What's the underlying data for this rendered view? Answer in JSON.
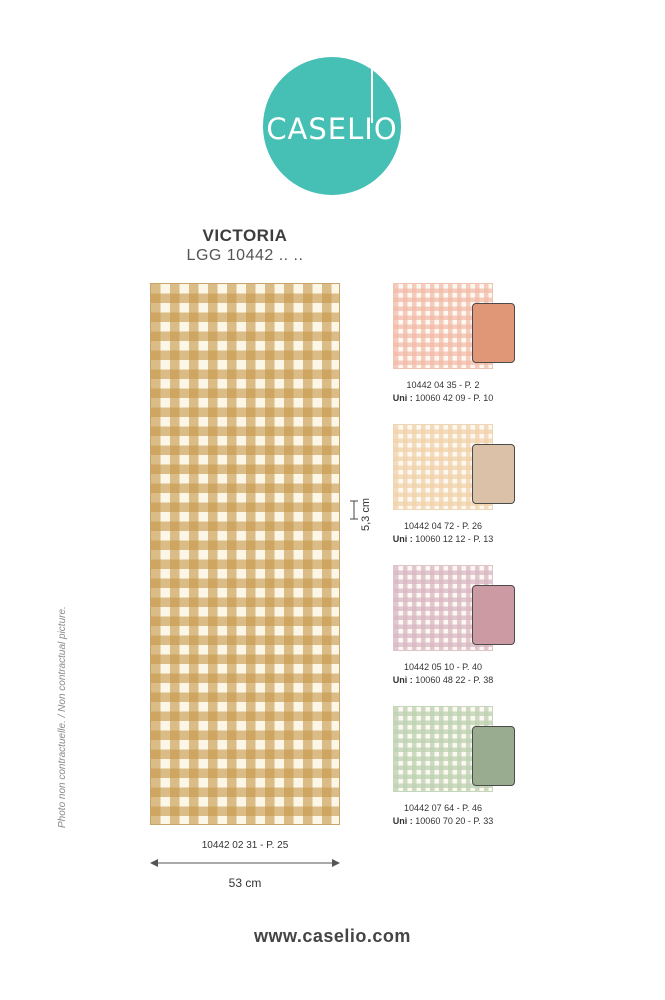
{
  "brand": {
    "logo_text": "CASELIO",
    "color": "#46bfb5"
  },
  "collection": {
    "name": "VICTORIA",
    "code": "LGG 10442 .. .."
  },
  "main": {
    "ref": "10442 02 31 - P. 25",
    "width_label": "53 cm",
    "repeat_label": "5,3 cm",
    "color": "#c6984c"
  },
  "disclaimer": "Photo non contractuelle. / Non contractual picture.",
  "variants": [
    {
      "ref": "10442 04 35 - P. 2",
      "uni_label": "Uni :",
      "uni_ref": " 10060 42 09 - P. 10",
      "check_color": "#f2b9a6",
      "uni_color": "#df9778"
    },
    {
      "ref": "10442 04 72 - P. 26",
      "uni_label": "Uni :",
      "uni_ref": " 10060 12 12 - P. 13",
      "check_color": "#f1d2a9",
      "uni_color": "#dac1a8"
    },
    {
      "ref": "10442 05 10 - P. 40",
      "uni_label": "Uni :",
      "uni_ref": " 10060 48 22 - P. 38",
      "check_color": "#d9b7c3",
      "uni_color": "#cc9aa3"
    },
    {
      "ref": "10442 07 64 - P. 46",
      "uni_label": "Uni :",
      "uni_ref": " 10060 70 20 - P. 33",
      "check_color": "#bfd2b4",
      "uni_color": "#99ac90"
    }
  ],
  "website": "www.caselio.com"
}
